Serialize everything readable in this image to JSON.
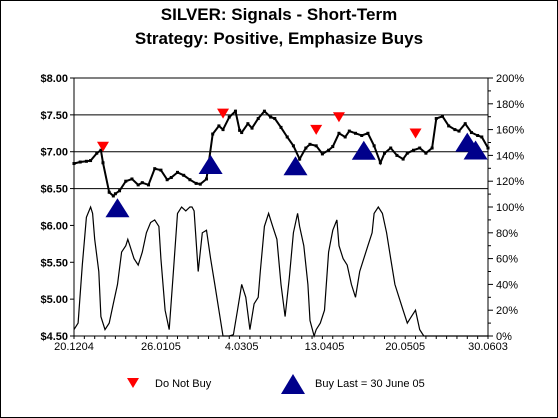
{
  "chart_data": {
    "type": "line",
    "title": "SILVER: Signals - Short-Term",
    "subtitle": "Strategy: Positive, Emphasize Buys",
    "x_tick_labels": [
      "20.1204",
      "26.0105",
      "4.0305",
      "13.0405",
      "20.0505",
      "30.0603"
    ],
    "y_left": {
      "min": 4.5,
      "max": 8.0,
      "ticks": [
        "$4.50",
        "$5.00",
        "$5.50",
        "$6.00",
        "$6.50",
        "$7.00",
        "$7.50",
        "$8.00"
      ]
    },
    "y_right": {
      "min": 0,
      "max": 200,
      "ticks": [
        "0%",
        "20%",
        "40%",
        "60%",
        "80%",
        "100%",
        "120%",
        "140%",
        "160%",
        "180%",
        "200%"
      ]
    },
    "horizontal_grid_left_values": [
      6.5,
      7.0,
      7.5
    ],
    "series": [
      {
        "axis": "left",
        "style": "dotted-markers",
        "x": [
          0,
          3,
          6,
          8,
          11,
          13,
          14,
          17,
          19,
          20,
          22,
          25,
          28,
          31,
          33,
          36,
          39,
          42,
          45,
          47,
          50,
          53,
          56,
          59,
          61,
          64,
          67,
          70,
          72,
          75,
          78,
          80,
          81,
          84,
          86,
          89,
          92,
          95,
          97,
          100,
          103,
          106,
          109,
          112,
          114,
          117,
          120,
          123,
          125,
          128,
          131,
          133,
          136,
          139,
          142,
          145,
          148,
          150,
          153,
          156,
          159,
          161,
          164,
          167,
          170,
          173,
          175,
          178,
          181,
          184,
          186,
          189,
          192,
          195,
          197,
          200
        ],
        "values": [
          6.84,
          6.86,
          6.87,
          6.88,
          6.98,
          7.02,
          6.85,
          6.45,
          6.4,
          6.43,
          6.47,
          6.6,
          6.63,
          6.55,
          6.58,
          6.55,
          6.77,
          6.75,
          6.62,
          6.65,
          6.72,
          6.68,
          6.62,
          6.57,
          6.56,
          6.63,
          7.24,
          7.35,
          7.3,
          7.47,
          7.55,
          7.29,
          7.26,
          7.38,
          7.32,
          7.45,
          7.55,
          7.47,
          7.45,
          7.33,
          7.2,
          7.08,
          6.9,
          7.05,
          7.1,
          7.08,
          6.97,
          7.02,
          7.07,
          7.25,
          7.2,
          7.28,
          7.25,
          7.22,
          7.25,
          7.08,
          6.85,
          6.98,
          7.05,
          6.95,
          6.9,
          6.98,
          7.02,
          7.05,
          6.98,
          7.05,
          7.45,
          7.48,
          7.35,
          7.3,
          7.28,
          7.38,
          7.26,
          7.22,
          7.2,
          7.05
        ]
      },
      {
        "axis": "right",
        "style": "line",
        "x": [
          0,
          2,
          4,
          6,
          8,
          9,
          10,
          12,
          13,
          15,
          17,
          19,
          21,
          23,
          25,
          26,
          27,
          29,
          31,
          33,
          35,
          37,
          39,
          41,
          42,
          44,
          46,
          48,
          50,
          52,
          54,
          56,
          57,
          58,
          60,
          62,
          64,
          66,
          68,
          70,
          72,
          74,
          75,
          77,
          79,
          81,
          83,
          85,
          87,
          89,
          90,
          92,
          94,
          96,
          98,
          100,
          102,
          104,
          106,
          108,
          109,
          111,
          113,
          114,
          116,
          117,
          119,
          121,
          123,
          125,
          127,
          128,
          130,
          132,
          134,
          136,
          138,
          140,
          142,
          144,
          145,
          147,
          149,
          151,
          153,
          155,
          157,
          159,
          161,
          163,
          165,
          167,
          169,
          171,
          172,
          174,
          176,
          178,
          180,
          182,
          184,
          186,
          188,
          190,
          192,
          194,
          196,
          198,
          200
        ],
        "values": [
          5,
          10,
          55,
          92,
          100,
          95,
          75,
          50,
          15,
          5,
          10,
          25,
          40,
          65,
          70,
          75,
          70,
          60,
          55,
          65,
          80,
          88,
          90,
          85,
          60,
          20,
          5,
          50,
          95,
          100,
          97,
          100,
          100,
          97,
          50,
          80,
          82,
          60,
          40,
          20,
          0,
          0,
          0,
          1,
          20,
          40,
          30,
          5,
          25,
          30,
          50,
          85,
          95,
          85,
          75,
          40,
          15,
          45,
          80,
          95,
          85,
          70,
          40,
          12,
          0,
          5,
          10,
          20,
          65,
          82,
          90,
          70,
          60,
          55,
          40,
          30,
          50,
          60,
          70,
          80,
          95,
          100,
          95,
          80,
          60,
          40,
          30,
          20,
          10,
          15,
          20,
          5,
          0,
          0,
          0,
          0,
          0,
          0,
          0,
          0,
          0,
          0,
          0,
          0,
          0,
          0,
          0,
          0,
          0
        ]
      }
    ],
    "signals": {
      "do_not_buy_x": [
        14,
        72,
        117,
        128,
        165
      ],
      "buy_x": [
        21,
        66,
        107,
        140,
        190,
        194
      ]
    },
    "legend": {
      "do_not_buy": "Do Not Buy",
      "buy": "Buy Last = 30 June 05"
    },
    "colors": {
      "do_not_buy": "#ff0000",
      "buy": "#00008b",
      "line": "#000000",
      "grid": "#000000"
    }
  }
}
